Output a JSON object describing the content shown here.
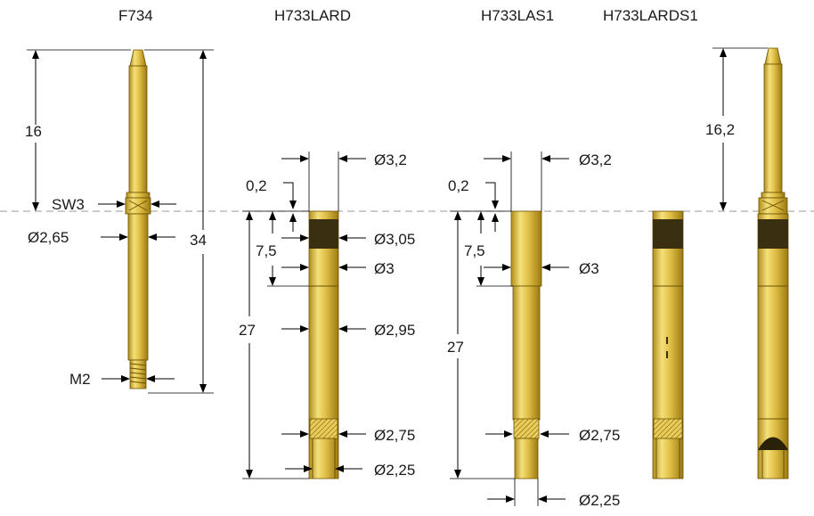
{
  "titles": {
    "f734": "F734",
    "h733lard": "H733LARD",
    "h733las1": "H733LAS1",
    "h733lards1": "H733LARDS1"
  },
  "dimensions": {
    "f734": {
      "length_top": "16",
      "wrench": "SW3",
      "diameter": "Ø2,65",
      "overall": "34",
      "thread": "M2"
    },
    "h733lard": {
      "offset": "0,2",
      "dia_top": "Ø3,2",
      "depth": "7,5",
      "dia_band": "Ø3,05",
      "dia_mid": "Ø3",
      "dia_body": "Ø2,95",
      "length": "27",
      "dia_lower": "Ø2,75",
      "dia_tip": "Ø2,25"
    },
    "h733las1": {
      "offset": "0,2",
      "dia_top": "Ø3,2",
      "depth": "7,5",
      "dia_mid": "Ø3",
      "length": "27",
      "dia_lower": "Ø2,75",
      "dia_tip": "Ø2,25"
    },
    "h733lards1": {
      "length_top": "16,2"
    }
  },
  "colors": {
    "brass_light": "#f4e07a",
    "brass_mid": "#d9b437",
    "brass_dark": "#9c7a12",
    "band": "#3a2f10",
    "reference_line": "#9a9a9a"
  }
}
